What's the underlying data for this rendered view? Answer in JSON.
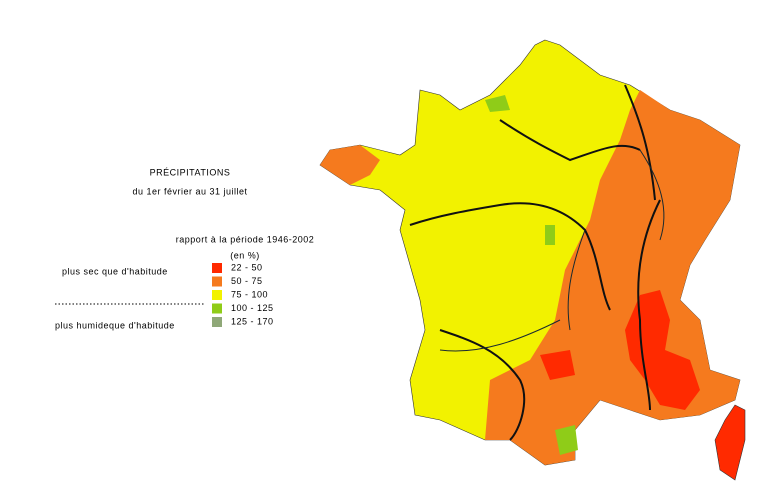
{
  "title": "PRÉCIPITATIONS",
  "subtitle": "du 1er février  au 31 juillet",
  "legend": {
    "title": "rapport à la période 1946-2002",
    "unit": "(en %)",
    "drier_label": "plus sec que d'habitude",
    "wetter_label": "plus humideque d'habitude",
    "items": [
      {
        "label": "22 -  50",
        "color": "#ff2a00"
      },
      {
        "label": "50 -  75",
        "color": "#f57a1e"
      },
      {
        "label": "75 - 100",
        "color": "#f2f200"
      },
      {
        "label": "100 - 125",
        "color": "#8fcc18"
      },
      {
        "label": "125 - 170",
        "color": "#8fa878"
      }
    ]
  }
}
